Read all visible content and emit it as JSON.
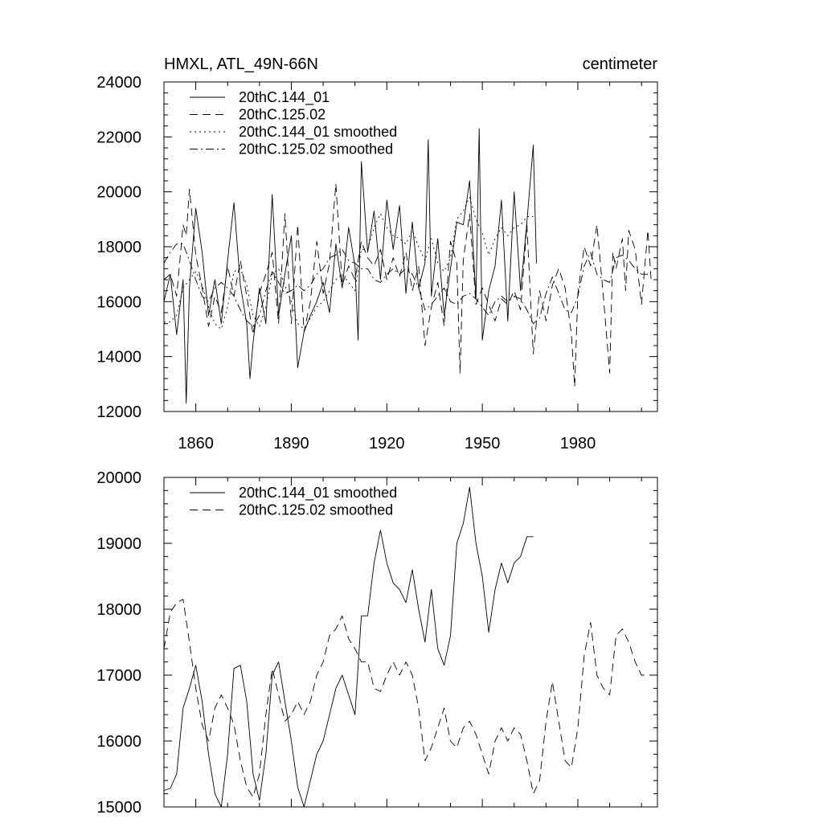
{
  "chart_data": [
    {
      "type": "line",
      "title": "HMXL, ATL_49N-66N",
      "units_label": "centimeter",
      "xlabel": "",
      "ylabel": "",
      "xlim": [
        1850,
        2005
      ],
      "ylim": [
        12000,
        24000
      ],
      "x_ticks": [
        1860,
        1890,
        1920,
        1950,
        1980
      ],
      "x_tick_labels": [
        "1860",
        "1890",
        "1920",
        "1950",
        "1980"
      ],
      "y_ticks": [
        12000,
        14000,
        16000,
        18000,
        20000,
        22000,
        24000
      ],
      "y_tick_labels": [
        "12000",
        "14000",
        "16000",
        "18000",
        "20000",
        "22000",
        "24000"
      ],
      "legend_position": "top-left",
      "series": [
        {
          "name": "20thC.144_01",
          "style": "solid",
          "x": [
            1850,
            1852,
            1854,
            1856,
            1857,
            1858,
            1860,
            1862,
            1864,
            1866,
            1868,
            1870,
            1872,
            1874,
            1876,
            1877,
            1878,
            1880,
            1882,
            1884,
            1886,
            1888,
            1890,
            1892,
            1894,
            1896,
            1898,
            1900,
            1902,
            1904,
            1906,
            1908,
            1910,
            1911,
            1912,
            1914,
            1916,
            1918,
            1920,
            1922,
            1924,
            1926,
            1928,
            1930,
            1932,
            1933,
            1934,
            1936,
            1938,
            1940,
            1942,
            1944,
            1946,
            1948,
            1949,
            1950,
            1952,
            1954,
            1956,
            1958,
            1960,
            1962,
            1964,
            1966,
            1967
          ],
          "values": [
            16000,
            17000,
            14800,
            16800,
            12300,
            16500,
            19400,
            17800,
            15500,
            16800,
            15200,
            17500,
            19600,
            16600,
            15200,
            13200,
            14500,
            16500,
            15200,
            19900,
            15500,
            17000,
            18400,
            13600,
            14900,
            15500,
            16000,
            16700,
            15600,
            18100,
            16500,
            18700,
            17300,
            14600,
            21100,
            17800,
            19300,
            16800,
            19700,
            17900,
            19500,
            16300,
            18900,
            16500,
            17400,
            21900,
            16200,
            18300,
            15500,
            17200,
            18900,
            18800,
            20400,
            16100,
            22300,
            14600,
            16400,
            17300,
            19700,
            15300,
            20000,
            16400,
            18900,
            21700,
            17400
          ]
        },
        {
          "name": "20thC.125.02",
          "style": "dashed",
          "x": [
            1850,
            1852,
            1854,
            1856,
            1857,
            1858,
            1860,
            1862,
            1864,
            1866,
            1868,
            1870,
            1872,
            1874,
            1876,
            1878,
            1880,
            1882,
            1884,
            1886,
            1888,
            1890,
            1892,
            1894,
            1896,
            1898,
            1900,
            1902,
            1904,
            1906,
            1908,
            1910,
            1912,
            1914,
            1916,
            1918,
            1920,
            1922,
            1924,
            1926,
            1928,
            1930,
            1932,
            1934,
            1936,
            1938,
            1940,
            1942,
            1943,
            1944,
            1946,
            1948,
            1950,
            1952,
            1954,
            1956,
            1958,
            1960,
            1962,
            1964,
            1966,
            1968,
            1970,
            1972,
            1974,
            1976,
            1978,
            1979,
            1980,
            1982,
            1984,
            1986,
            1988,
            1990,
            1991,
            1992,
            1994,
            1995,
            1996,
            1998,
            2000,
            2002,
            2003
          ],
          "values": [
            16800,
            17000,
            16200,
            18800,
            18400,
            20100,
            17700,
            16500,
            15100,
            16200,
            15600,
            17300,
            16200,
            17500,
            16200,
            14800,
            16300,
            17000,
            17800,
            15200,
            19200,
            15200,
            18800,
            14900,
            16000,
            18200,
            16300,
            17400,
            20300,
            16600,
            17300,
            16800,
            18200,
            17600,
            17300,
            17900,
            16800,
            17600,
            16900,
            17800,
            16400,
            17300,
            14400,
            15800,
            16700,
            15100,
            18200,
            17400,
            13400,
            17500,
            19200,
            15900,
            16500,
            15900,
            15300,
            16100,
            15900,
            16400,
            15700,
            18800,
            14100,
            16400,
            15300,
            16600,
            17200,
            16500,
            14800,
            12900,
            16300,
            18000,
            17300,
            18800,
            16200,
            13400,
            17800,
            17200,
            18300,
            16400,
            18600,
            17900,
            15900,
            18600,
            16800
          ]
        },
        {
          "name": "20thC.144_01 smoothed",
          "style": "dotted",
          "x": [
            1850,
            1852,
            1854,
            1856,
            1858,
            1860,
            1862,
            1864,
            1866,
            1868,
            1870,
            1872,
            1874,
            1876,
            1878,
            1880,
            1882,
            1884,
            1886,
            1888,
            1890,
            1892,
            1894,
            1896,
            1898,
            1900,
            1902,
            1904,
            1906,
            1908,
            1910,
            1912,
            1914,
            1916,
            1918,
            1920,
            1922,
            1924,
            1926,
            1928,
            1930,
            1932,
            1934,
            1936,
            1938,
            1940,
            1942,
            1944,
            1946,
            1948,
            1950,
            1952,
            1954,
            1956,
            1958,
            1960,
            1962,
            1964,
            1966
          ],
          "values": [
            15250,
            15270,
            15500,
            16500,
            16800,
            17100,
            16600,
            15800,
            15200,
            15000,
            15800,
            17100,
            17200,
            16600,
            15500,
            15100,
            15800,
            17000,
            17200,
            16600,
            16000,
            15200,
            15000,
            15400,
            15800,
            16000,
            16400,
            16800,
            17000,
            16700,
            16400,
            17900,
            17900,
            18700,
            19200,
            18700,
            18400,
            18300,
            18100,
            18600,
            18000,
            17500,
            18300,
            17400,
            17100,
            17600,
            19000,
            19300,
            19800,
            19000,
            18500,
            17700,
            18300,
            18700,
            18400,
            18700,
            18800,
            19100,
            19100
          ]
        },
        {
          "name": "20thC.125.02 smoothed",
          "style": "dashdot",
          "x": [
            1850,
            1852,
            1854,
            1856,
            1858,
            1860,
            1862,
            1864,
            1866,
            1868,
            1870,
            1872,
            1874,
            1876,
            1878,
            1880,
            1882,
            1884,
            1886,
            1888,
            1890,
            1892,
            1894,
            1896,
            1898,
            1900,
            1902,
            1904,
            1906,
            1908,
            1910,
            1912,
            1914,
            1916,
            1918,
            1920,
            1922,
            1924,
            1926,
            1928,
            1930,
            1932,
            1934,
            1936,
            1938,
            1940,
            1942,
            1944,
            1946,
            1948,
            1950,
            1952,
            1954,
            1956,
            1958,
            1960,
            1962,
            1964,
            1966,
            1968,
            1970,
            1972,
            1974,
            1976,
            1978,
            1980,
            1982,
            1984,
            1986,
            1988,
            1990,
            1992,
            1994,
            1996,
            1998,
            2000,
            2002
          ],
          "values": [
            17400,
            17800,
            18100,
            18100,
            17500,
            16800,
            16200,
            16000,
            16500,
            16700,
            16500,
            16200,
            15700,
            15300,
            15100,
            15500,
            16400,
            17100,
            16700,
            16300,
            16400,
            16600,
            16400,
            16600,
            17000,
            17200,
            17600,
            17700,
            17900,
            17500,
            17400,
            17200,
            17200,
            16800,
            16700,
            17000,
            17200,
            17000,
            17200,
            17000,
            16500,
            15700,
            15900,
            16200,
            16500,
            16000,
            15900,
            16200,
            16300,
            16100,
            15800,
            15500,
            16000,
            16200,
            16000,
            16200,
            16100,
            15700,
            15200,
            15400,
            16300,
            16900,
            16300,
            15700,
            15600,
            16200,
            17300,
            17800,
            17000,
            16800,
            16700,
            17600,
            17700,
            17500,
            17200,
            17000,
            17000
          ]
        }
      ]
    },
    {
      "type": "line",
      "title": "",
      "xlabel": "",
      "ylabel": "",
      "xlim": [
        1850,
        2005
      ],
      "ylim": [
        15000,
        20000
      ],
      "x_ticks": [
        1860,
        1890,
        1920,
        1950,
        1980
      ],
      "x_tick_labels": [],
      "y_ticks": [
        15000,
        16000,
        17000,
        18000,
        19000,
        20000
      ],
      "y_tick_labels": [
        "15000",
        "16000",
        "17000",
        "18000",
        "19000",
        "20000"
      ],
      "legend_position": "top-left",
      "series": [
        {
          "name": "20thC.144_01 smoothed",
          "style": "solid",
          "x": [
            1850,
            1852,
            1854,
            1856,
            1858,
            1860,
            1862,
            1864,
            1866,
            1868,
            1870,
            1872,
            1874,
            1876,
            1878,
            1880,
            1882,
            1884,
            1886,
            1888,
            1890,
            1892,
            1894,
            1896,
            1898,
            1900,
            1902,
            1904,
            1906,
            1908,
            1910,
            1912,
            1914,
            1916,
            1918,
            1920,
            1922,
            1924,
            1926,
            1928,
            1930,
            1932,
            1934,
            1936,
            1938,
            1940,
            1942,
            1944,
            1946,
            1948,
            1950,
            1952,
            1954,
            1956,
            1958,
            1960,
            1962,
            1964,
            1966
          ],
          "values": [
            15250,
            15280,
            15500,
            16500,
            16800,
            17150,
            16600,
            15800,
            15200,
            15000,
            15800,
            17100,
            17150,
            16600,
            15500,
            15100,
            15800,
            17000,
            17200,
            16600,
            16000,
            15300,
            15000,
            15400,
            15800,
            16000,
            16400,
            16800,
            17000,
            16700,
            16400,
            17900,
            17900,
            18700,
            19200,
            18700,
            18400,
            18300,
            18100,
            18600,
            18000,
            17500,
            18300,
            17400,
            17150,
            17600,
            19000,
            19300,
            19850,
            19000,
            18500,
            17650,
            18300,
            18700,
            18400,
            18700,
            18800,
            19100,
            19100
          ]
        },
        {
          "name": "20thC.125.02 smoothed",
          "style": "dashed",
          "x": [
            1850,
            1852,
            1854,
            1856,
            1858,
            1860,
            1862,
            1864,
            1866,
            1868,
            1870,
            1872,
            1874,
            1876,
            1878,
            1880,
            1882,
            1884,
            1886,
            1888,
            1890,
            1892,
            1894,
            1896,
            1898,
            1900,
            1902,
            1904,
            1906,
            1908,
            1910,
            1912,
            1914,
            1916,
            1918,
            1920,
            1922,
            1924,
            1926,
            1928,
            1930,
            1932,
            1934,
            1936,
            1938,
            1940,
            1942,
            1944,
            1946,
            1948,
            1950,
            1952,
            1954,
            1956,
            1958,
            1960,
            1962,
            1964,
            1966,
            1968,
            1970,
            1972,
            1974,
            1976,
            1978,
            1980,
            1982,
            1984,
            1986,
            1988,
            1990,
            1992,
            1994,
            1996,
            1998,
            2000,
            2002
          ],
          "values": [
            17400,
            17950,
            18100,
            18150,
            17500,
            16800,
            16250,
            16000,
            16500,
            16700,
            16500,
            16250,
            15700,
            15300,
            15150,
            15500,
            16400,
            17100,
            16700,
            16300,
            16400,
            16600,
            16400,
            16600,
            17000,
            17200,
            17600,
            17700,
            17900,
            17550,
            17400,
            17200,
            17200,
            16800,
            16750,
            17000,
            17200,
            17000,
            17200,
            17000,
            16500,
            15700,
            15900,
            16200,
            16500,
            16000,
            15900,
            16200,
            16300,
            16100,
            15800,
            15500,
            16000,
            16200,
            16000,
            16200,
            16100,
            15700,
            15200,
            15400,
            16300,
            16900,
            16300,
            15700,
            15600,
            16200,
            17300,
            17800,
            17000,
            16800,
            16700,
            17600,
            17700,
            17500,
            17200,
            17000,
            17000
          ]
        }
      ]
    }
  ]
}
